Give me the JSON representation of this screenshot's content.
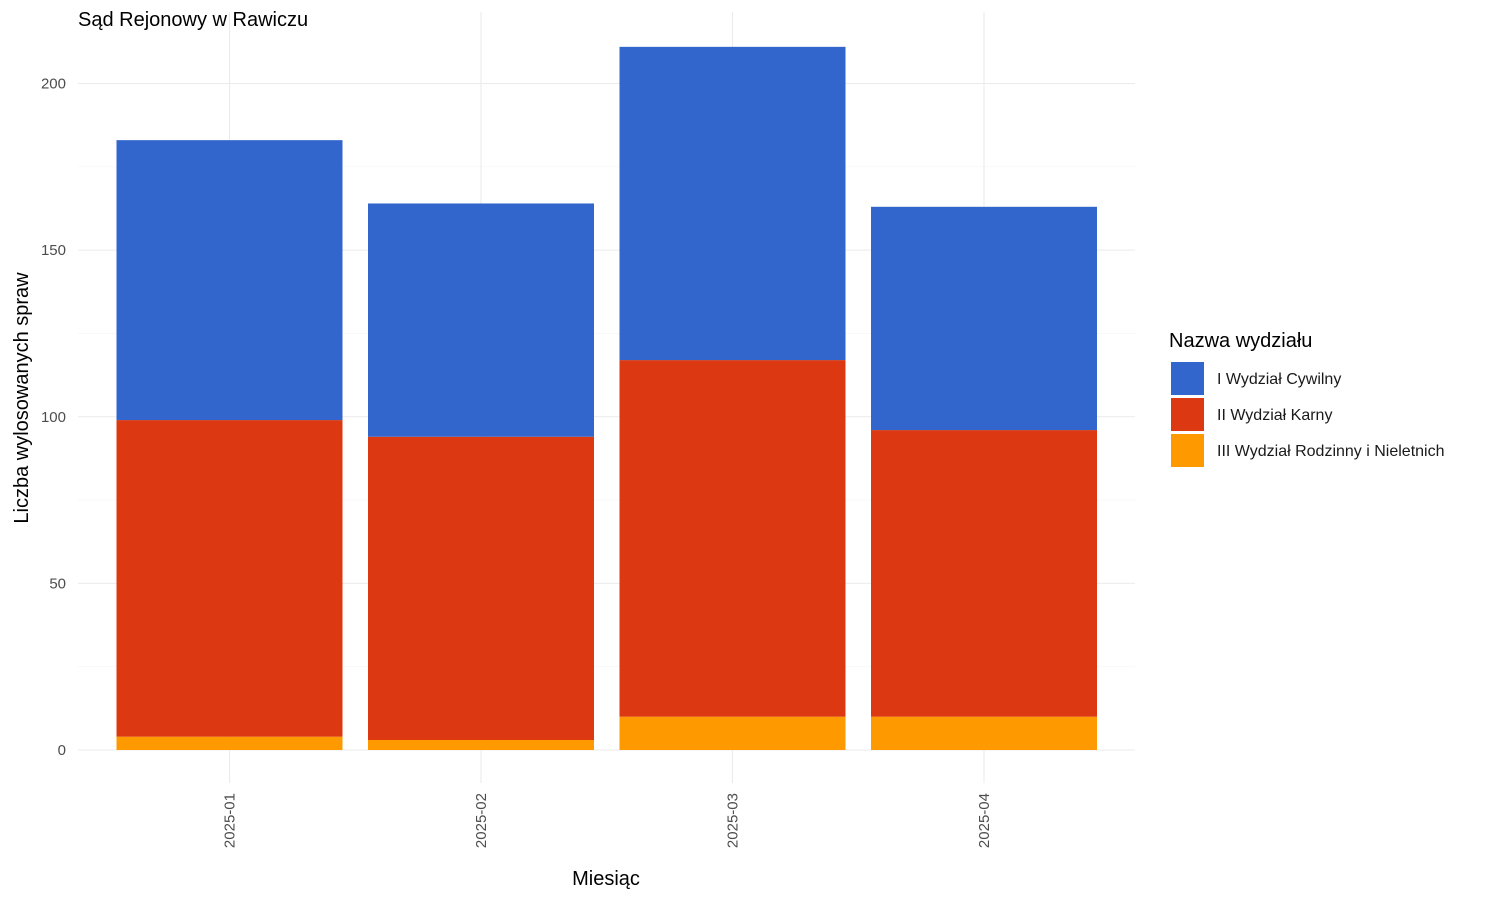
{
  "chart_data": {
    "type": "bar",
    "stacked": true,
    "title": "Sąd Rejonowy w Rawiczu",
    "xlabel": "Miesiąc",
    "ylabel": "Liczba wylosowanych spraw",
    "categories": [
      "2025-01",
      "2025-02",
      "2025-03",
      "2025-04"
    ],
    "ylim": [
      0,
      221
    ],
    "yticks": [
      0,
      50,
      100,
      150,
      200
    ],
    "grid": true,
    "legend_title": "Nazwa wydziału",
    "legend_position": "right",
    "series": [
      {
        "name": "III Wydział Rodzinny i Nieletnich",
        "color": "#FF9900",
        "values": [
          4,
          3,
          10,
          10
        ]
      },
      {
        "name": "II Wydział Karny",
        "color": "#DC3912",
        "values": [
          95,
          91,
          107,
          86
        ]
      },
      {
        "name": "I Wydział Cywilny",
        "color": "#3366CC",
        "values": [
          84,
          70,
          94,
          67
        ]
      }
    ],
    "legend_order": [
      "I Wydział Cywilny",
      "II Wydział Karny",
      "III Wydział Rodzinny i Nieletnich"
    ]
  }
}
